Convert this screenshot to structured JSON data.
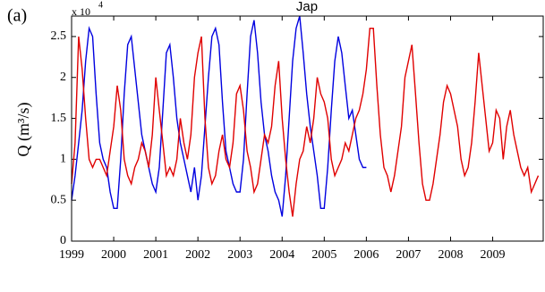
{
  "chart_data": {
    "type": "line",
    "panel_label": "(a)",
    "title": "Jap",
    "y_label": "Q (m³/s)",
    "y_multiplier": "x 10",
    "y_multiplier_exp": "4",
    "xlim": [
      1999,
      2010.2
    ],
    "xticks": [
      1999,
      2000,
      2001,
      2002,
      2003,
      2004,
      2005,
      2006,
      2007,
      2008,
      2009
    ],
    "ylim": [
      0,
      2.75
    ],
    "yticks": [
      0,
      0.5,
      1,
      1.5,
      2,
      2.5
    ],
    "x": [
      1999,
      1999.083,
      1999.167,
      1999.25,
      1999.333,
      1999.417,
      1999.5,
      1999.583,
      1999.667,
      1999.75,
      1999.833,
      1999.917,
      2000,
      2000.083,
      2000.167,
      2000.25,
      2000.333,
      2000.417,
      2000.5,
      2000.583,
      2000.667,
      2000.75,
      2000.833,
      2000.917,
      2001,
      2001.083,
      2001.167,
      2001.25,
      2001.333,
      2001.417,
      2001.5,
      2001.583,
      2001.667,
      2001.75,
      2001.833,
      2001.917,
      2002,
      2002.083,
      2002.167,
      2002.25,
      2002.333,
      2002.417,
      2002.5,
      2002.583,
      2002.667,
      2002.75,
      2002.833,
      2002.917,
      2003,
      2003.083,
      2003.167,
      2003.25,
      2003.333,
      2003.417,
      2003.5,
      2003.583,
      2003.667,
      2003.75,
      2003.833,
      2003.917,
      2004,
      2004.083,
      2004.167,
      2004.25,
      2004.333,
      2004.417,
      2004.5,
      2004.583,
      2004.667,
      2004.75,
      2004.833,
      2004.917,
      2005,
      2005.083,
      2005.167,
      2005.25,
      2005.333,
      2005.417,
      2005.5,
      2005.583,
      2005.667,
      2005.75,
      2005.833,
      2005.917,
      2006,
      2006.083,
      2006.167,
      2006.25,
      2006.333,
      2006.417,
      2006.5,
      2006.583,
      2006.667,
      2006.75,
      2006.833,
      2006.917,
      2007,
      2007.083,
      2007.167,
      2007.25,
      2007.333,
      2007.417,
      2007.5,
      2007.583,
      2007.667,
      2007.75,
      2007.833,
      2007.917,
      2008,
      2008.083,
      2008.167,
      2008.25,
      2008.333,
      2008.417,
      2008.5,
      2008.583,
      2008.667,
      2008.75,
      2008.833,
      2008.917,
      2009,
      2009.083,
      2009.167,
      2009.25,
      2009.333,
      2009.417,
      2009.5,
      2009.583,
      2009.667,
      2009.75,
      2009.833,
      2009.917,
      2010,
      2010.083
    ],
    "series": [
      {
        "color": "#0000e0",
        "values": [
          0.5,
          0.8,
          1.2,
          1.6,
          2.2,
          2.6,
          2.5,
          1.8,
          1.2,
          1.0,
          0.9,
          0.6,
          0.4,
          0.4,
          1.0,
          1.8,
          2.4,
          2.5,
          2.1,
          1.7,
          1.3,
          1.1,
          0.9,
          0.7,
          0.6,
          0.9,
          1.6,
          2.3,
          2.4,
          2.0,
          1.5,
          1.2,
          1.0,
          0.8,
          0.6,
          0.9,
          0.5,
          0.8,
          1.4,
          2.0,
          2.5,
          2.6,
          2.4,
          1.7,
          1.1,
          0.9,
          0.7,
          0.6,
          0.6,
          1.0,
          1.8,
          2.5,
          2.7,
          2.3,
          1.7,
          1.3,
          1.1,
          0.8,
          0.6,
          0.5,
          0.3,
          0.8,
          1.5,
          2.2,
          2.6,
          2.75,
          2.3,
          1.8,
          1.4,
          1.1,
          0.8,
          0.4,
          0.4,
          0.9,
          1.6,
          2.2,
          2.5,
          2.3,
          1.9,
          1.5,
          1.6,
          1.3,
          1.0,
          0.9,
          0.9,
          null,
          null,
          null,
          null,
          null,
          null,
          null,
          null,
          null,
          null,
          null,
          null,
          null,
          null,
          null,
          null,
          null,
          null,
          null,
          null,
          null,
          null,
          null,
          null,
          null,
          null,
          null,
          null,
          null,
          null,
          null,
          null,
          null,
          null,
          null,
          null,
          null,
          null,
          null,
          null,
          null,
          null,
          null,
          null,
          null,
          null,
          null,
          null,
          null
        ]
      },
      {
        "color": "#e00000",
        "values": [
          0.7,
          1.2,
          2.5,
          2.1,
          1.5,
          1.0,
          0.9,
          1.0,
          1.0,
          0.9,
          0.8,
          1.1,
          1.4,
          1.9,
          1.6,
          1.0,
          0.8,
          0.7,
          0.9,
          1.0,
          1.2,
          1.1,
          0.9,
          1.3,
          2.0,
          1.6,
          1.2,
          0.8,
          0.9,
          0.8,
          1.0,
          1.5,
          1.2,
          1.0,
          1.3,
          2.0,
          2.3,
          2.5,
          1.5,
          0.9,
          0.7,
          0.8,
          1.1,
          1.3,
          1.0,
          0.9,
          1.2,
          1.8,
          1.9,
          1.6,
          1.1,
          0.9,
          0.6,
          0.7,
          1.0,
          1.3,
          1.2,
          1.4,
          1.9,
          2.2,
          1.5,
          1.0,
          0.6,
          0.3,
          0.7,
          1.0,
          1.1,
          1.4,
          1.2,
          1.5,
          2.0,
          1.8,
          1.7,
          1.5,
          1.0,
          0.8,
          0.9,
          1.0,
          1.2,
          1.1,
          1.3,
          1.5,
          1.6,
          1.8,
          2.1,
          2.6,
          2.6,
          1.9,
          1.3,
          0.9,
          0.8,
          0.6,
          0.8,
          1.1,
          1.4,
          2.0,
          2.2,
          2.4,
          1.8,
          1.2,
          0.7,
          0.5,
          0.5,
          0.7,
          1.0,
          1.3,
          1.7,
          1.9,
          1.8,
          1.6,
          1.4,
          1.0,
          0.8,
          0.9,
          1.2,
          1.7,
          2.3,
          1.9,
          1.5,
          1.1,
          1.2,
          1.6,
          1.5,
          1.0,
          1.4,
          1.6,
          1.3,
          1.1,
          0.9,
          0.8,
          0.9,
          0.6,
          0.7,
          0.8
        ]
      }
    ]
  }
}
